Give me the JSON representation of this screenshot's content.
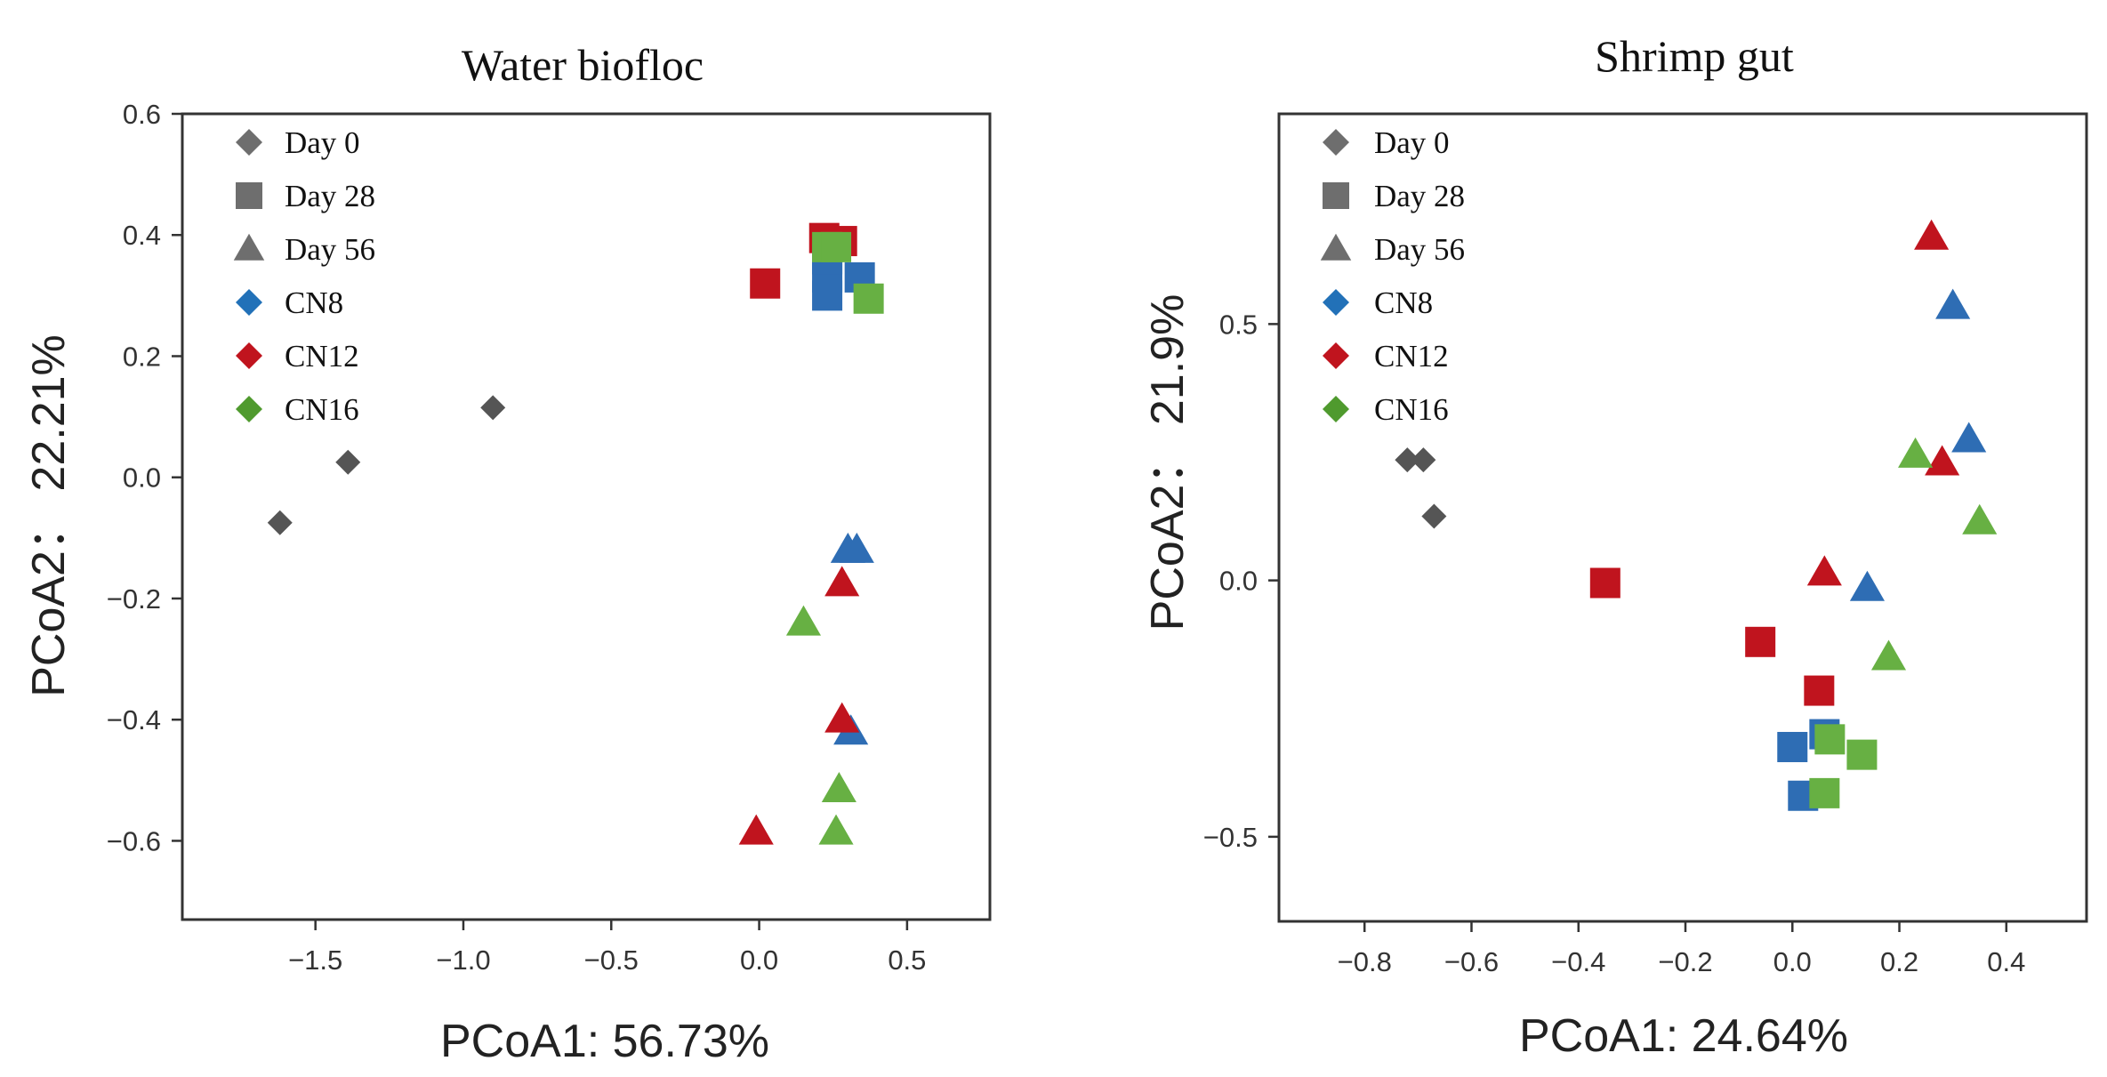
{
  "chart_data": [
    {
      "type": "scatter",
      "title": "Water biofloc",
      "xlabel": "PCoA1: 56.73%",
      "ylabel": "PCoA2： 22.21%",
      "xlim": [
        -1.95,
        0.78
      ],
      "ylim": [
        -0.73,
        0.6
      ],
      "xticks": [
        -1.5,
        -1.0,
        -0.5,
        0.0,
        0.5
      ],
      "xtick_labels": [
        "−1.5",
        "−1.0",
        "−0.5",
        "0.0",
        "0.5"
      ],
      "yticks": [
        -0.6,
        -0.4,
        -0.2,
        0.0,
        0.2,
        0.4,
        0.6
      ],
      "ytick_labels": [
        "−0.6",
        "−0.4",
        "−0.2",
        "0.0",
        "0.2",
        "0.4",
        "0.6"
      ],
      "points": [
        {
          "x": -1.62,
          "y": -0.075,
          "group": "Day 0",
          "time": "Day 0"
        },
        {
          "x": -1.39,
          "y": 0.025,
          "group": "Day 0",
          "time": "Day 0"
        },
        {
          "x": -0.9,
          "y": 0.115,
          "group": "Day 0",
          "time": "Day 0"
        },
        {
          "x": 0.02,
          "y": 0.32,
          "group": "CN12",
          "time": "Day 28"
        },
        {
          "x": 0.22,
          "y": 0.395,
          "group": "CN12",
          "time": "Day 28"
        },
        {
          "x": 0.28,
          "y": 0.39,
          "group": "CN12",
          "time": "Day 28"
        },
        {
          "x": 0.23,
          "y": 0.3,
          "group": "CN8",
          "time": "Day 28"
        },
        {
          "x": 0.23,
          "y": 0.33,
          "group": "CN8",
          "time": "Day 28"
        },
        {
          "x": 0.23,
          "y": 0.36,
          "group": "CN8",
          "time": "Day 28"
        },
        {
          "x": 0.34,
          "y": 0.33,
          "group": "CN8",
          "time": "Day 28"
        },
        {
          "x": 0.23,
          "y": 0.38,
          "group": "CN16",
          "time": "Day 28"
        },
        {
          "x": 0.26,
          "y": 0.38,
          "group": "CN16",
          "time": "Day 28"
        },
        {
          "x": 0.37,
          "y": 0.295,
          "group": "CN16",
          "time": "Day 28"
        },
        {
          "x": 0.3,
          "y": -0.12,
          "group": "CN8",
          "time": "Day 56"
        },
        {
          "x": 0.33,
          "y": -0.12,
          "group": "CN8",
          "time": "Day 56"
        },
        {
          "x": 0.31,
          "y": -0.42,
          "group": "CN8",
          "time": "Day 56"
        },
        {
          "x": 0.28,
          "y": -0.175,
          "group": "CN12",
          "time": "Day 56"
        },
        {
          "x": 0.28,
          "y": -0.4,
          "group": "CN12",
          "time": "Day 56"
        },
        {
          "x": -0.01,
          "y": -0.585,
          "group": "CN12",
          "time": "Day 56"
        },
        {
          "x": 0.15,
          "y": -0.24,
          "group": "CN16",
          "time": "Day 56"
        },
        {
          "x": 0.27,
          "y": -0.515,
          "group": "CN16",
          "time": "Day 56"
        },
        {
          "x": 0.26,
          "y": -0.585,
          "group": "CN16",
          "time": "Day 56"
        }
      ]
    },
    {
      "type": "scatter",
      "title": "Shrimp gut",
      "xlabel": "PCoA1: 24.64%",
      "ylabel": "PCoA2： 21.9%",
      "xlim": [
        -0.96,
        0.55
      ],
      "ylim": [
        -0.665,
        0.91
      ],
      "xticks": [
        -0.8,
        -0.6,
        -0.4,
        -0.2,
        0.0,
        0.2,
        0.4
      ],
      "xtick_labels": [
        "−0.8",
        "−0.6",
        "−0.4",
        "−0.2",
        "0.0",
        "0.2",
        "0.4"
      ],
      "yticks": [
        -0.5,
        0.0,
        0.5
      ],
      "ytick_labels": [
        "−0.5",
        "0.0",
        "0.5"
      ],
      "points": [
        {
          "x": -0.72,
          "y": 0.235,
          "group": "Day 0",
          "time": "Day 0"
        },
        {
          "x": -0.69,
          "y": 0.235,
          "group": "Day 0",
          "time": "Day 0"
        },
        {
          "x": -0.67,
          "y": 0.125,
          "group": "Day 0",
          "time": "Day 0"
        },
        {
          "x": -0.35,
          "y": -0.005,
          "group": "CN12",
          "time": "Day 28"
        },
        {
          "x": -0.06,
          "y": -0.12,
          "group": "CN12",
          "time": "Day 28"
        },
        {
          "x": 0.05,
          "y": -0.215,
          "group": "CN12",
          "time": "Day 28"
        },
        {
          "x": 0.0,
          "y": -0.325,
          "group": "CN8",
          "time": "Day 28"
        },
        {
          "x": 0.06,
          "y": -0.3,
          "group": "CN8",
          "time": "Day 28"
        },
        {
          "x": 0.02,
          "y": -0.42,
          "group": "CN8",
          "time": "Day 28"
        },
        {
          "x": 0.07,
          "y": -0.31,
          "group": "CN16",
          "time": "Day 28"
        },
        {
          "x": 0.13,
          "y": -0.34,
          "group": "CN16",
          "time": "Day 28"
        },
        {
          "x": 0.06,
          "y": -0.415,
          "group": "CN16",
          "time": "Day 28"
        },
        {
          "x": 0.26,
          "y": 0.67,
          "group": "CN12",
          "time": "Day 56"
        },
        {
          "x": 0.06,
          "y": 0.015,
          "group": "CN12",
          "time": "Day 56"
        },
        {
          "x": 0.28,
          "y": 0.23,
          "group": "CN12",
          "time": "Day 56"
        },
        {
          "x": 0.3,
          "y": 0.535,
          "group": "CN8",
          "time": "Day 56"
        },
        {
          "x": 0.33,
          "y": 0.275,
          "group": "CN8",
          "time": "Day 56"
        },
        {
          "x": 0.14,
          "y": -0.015,
          "group": "CN8",
          "time": "Day 56"
        },
        {
          "x": 0.23,
          "y": 0.245,
          "group": "CN16",
          "time": "Day 56"
        },
        {
          "x": 0.35,
          "y": 0.115,
          "group": "CN16",
          "time": "Day 56"
        },
        {
          "x": 0.18,
          "y": -0.15,
          "group": "CN16",
          "time": "Day 56"
        }
      ]
    }
  ],
  "legend": {
    "position": "top-left",
    "items": [
      {
        "label": "Day 0",
        "shape": "diamond",
        "color": "#6e6e6e"
      },
      {
        "label": "Day 28",
        "shape": "square",
        "color": "#6e6e6e"
      },
      {
        "label": "Day 56",
        "shape": "triangle",
        "color": "#6e6e6e"
      },
      {
        "label": "CN8",
        "shape": "diamond",
        "color": "#2271b8"
      },
      {
        "label": "CN12",
        "shape": "diamond",
        "color": "#c0141e"
      },
      {
        "label": "CN16",
        "shape": "diamond",
        "color": "#4f9a2e"
      }
    ]
  },
  "colors": {
    "Day 0": "#555555",
    "CN8": "#2e6db4",
    "CN12": "#c0141e",
    "CN16": "#67b043"
  },
  "shapes": {
    "Day 0": "diamond",
    "Day 28": "square",
    "Day 56": "triangle"
  }
}
